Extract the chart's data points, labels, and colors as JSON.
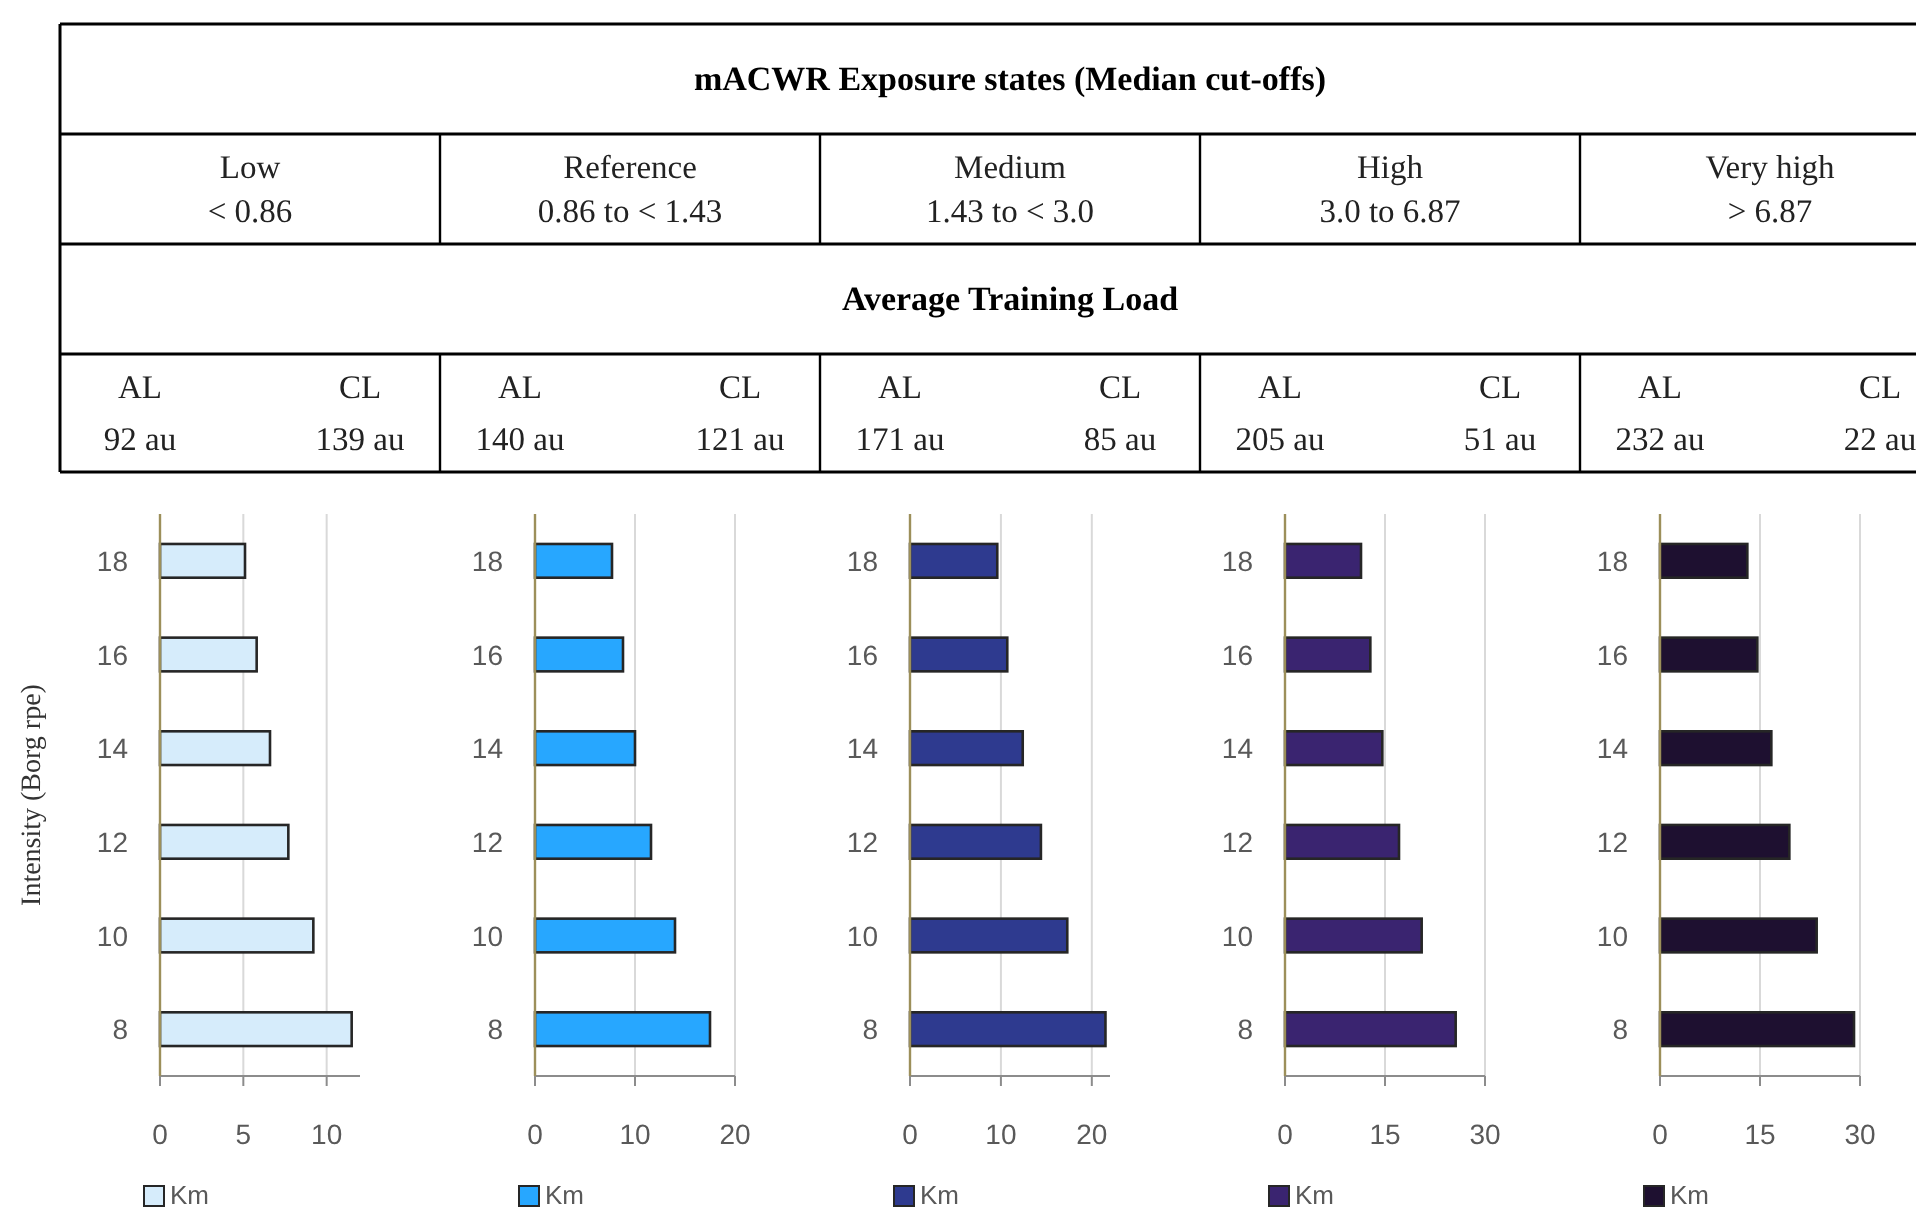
{
  "chart_data": [
    {
      "type": "other",
      "title": "mACWR Exposure states (Median cut-offs)",
      "subtitle": "Average Training Load",
      "annotations": [
        "Low",
        "< 0.86",
        "Reference",
        "0.86 to < 1.43",
        "Medium",
        "1.43 to < 3.0",
        "High",
        "3.0 to 6.87",
        "Very high",
        "> 6.87",
        "AL",
        "CL",
        "92 au",
        "139 au",
        "AL",
        "CL",
        "140 au",
        "121 au",
        "AL",
        "CL",
        "171 au",
        "85 au",
        "AL",
        "CL",
        "205 au",
        "51 au",
        "AL",
        "CL",
        "232 au",
        "22 au"
      ]
    },
    {
      "type": "bar",
      "orientation": "horizontal",
      "ylabel": "Intensity (Borg rpe)",
      "categories": [
        "18",
        "16",
        "14",
        "12",
        "10",
        "8"
      ],
      "series": [
        {
          "name": "Km",
          "color": "#d6ecfb",
          "values": [
            5.1,
            5.8,
            6.6,
            7.7,
            9.2,
            11.5
          ]
        }
      ],
      "xlim": [
        0,
        12
      ],
      "xticks": [
        0,
        5,
        10
      ],
      "grid": "x",
      "legend": "bottom"
    },
    {
      "type": "bar",
      "orientation": "horizontal",
      "categories": [
        "18",
        "16",
        "14",
        "12",
        "10",
        "8"
      ],
      "series": [
        {
          "name": "Km",
          "color": "#27a7ff",
          "values": [
            7.7,
            8.8,
            10.0,
            11.6,
            14.0,
            17.5
          ]
        }
      ],
      "xlim": [
        0,
        20
      ],
      "xticks": [
        0,
        10,
        20
      ],
      "grid": "x",
      "legend": "bottom"
    },
    {
      "type": "bar",
      "orientation": "horizontal",
      "categories": [
        "18",
        "16",
        "14",
        "12",
        "10",
        "8"
      ],
      "series": [
        {
          "name": "Km",
          "color": "#2e3a8f",
          "values": [
            9.6,
            10.7,
            12.4,
            14.4,
            17.3,
            21.5
          ]
        }
      ],
      "xlim": [
        0,
        22
      ],
      "xticks": [
        0,
        10,
        20
      ],
      "grid": "x",
      "legend": "bottom"
    },
    {
      "type": "bar",
      "orientation": "horizontal",
      "categories": [
        "18",
        "16",
        "14",
        "12",
        "10",
        "8"
      ],
      "series": [
        {
          "name": "Km",
          "color": "#3a2470",
          "values": [
            11.4,
            12.8,
            14.6,
            17.1,
            20.5,
            25.6
          ]
        }
      ],
      "xlim": [
        0,
        30
      ],
      "xticks": [
        0,
        15,
        30
      ],
      "grid": "x",
      "legend": "bottom"
    },
    {
      "type": "bar",
      "orientation": "horizontal",
      "categories": [
        "18",
        "16",
        "14",
        "12",
        "10",
        "8"
      ],
      "series": [
        {
          "name": "Km",
          "color": "#1e1030",
          "values": [
            13.1,
            14.6,
            16.7,
            19.4,
            23.5,
            29.1
          ]
        }
      ],
      "xlim": [
        0,
        30
      ],
      "xticks": [
        0,
        15,
        30
      ],
      "grid": "x",
      "legend": "bottom"
    }
  ]
}
